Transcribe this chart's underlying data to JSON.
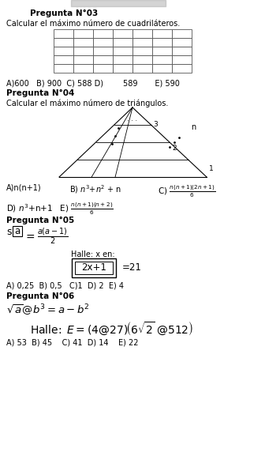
{
  "bg_color": "#ffffff",
  "title_q03": "Pregunta N°03",
  "text_q03": "Calcular el máximo número de cuadriláteros.",
  "answers_q03": "A)600   B) 900  C) 588 D)        589       E) 590",
  "grid_rows": 5,
  "grid_cols": 7,
  "title_q04": "Pregunta N°04",
  "text_q04": "Calcular el máximo número de triángulos.",
  "title_q05": "Pregunta N°05",
  "halle_q05": "Halle: x en:",
  "answers_q05": "A) 0,25  B) 0,5   C)1  D) 2  E) 4",
  "title_q06": "Pregunta N°06",
  "answers_q06": "A) 53  B) 45    C) 41  D) 14    E) 22",
  "font_title": 7.5,
  "font_body": 7.0,
  "font_ans": 7.5
}
